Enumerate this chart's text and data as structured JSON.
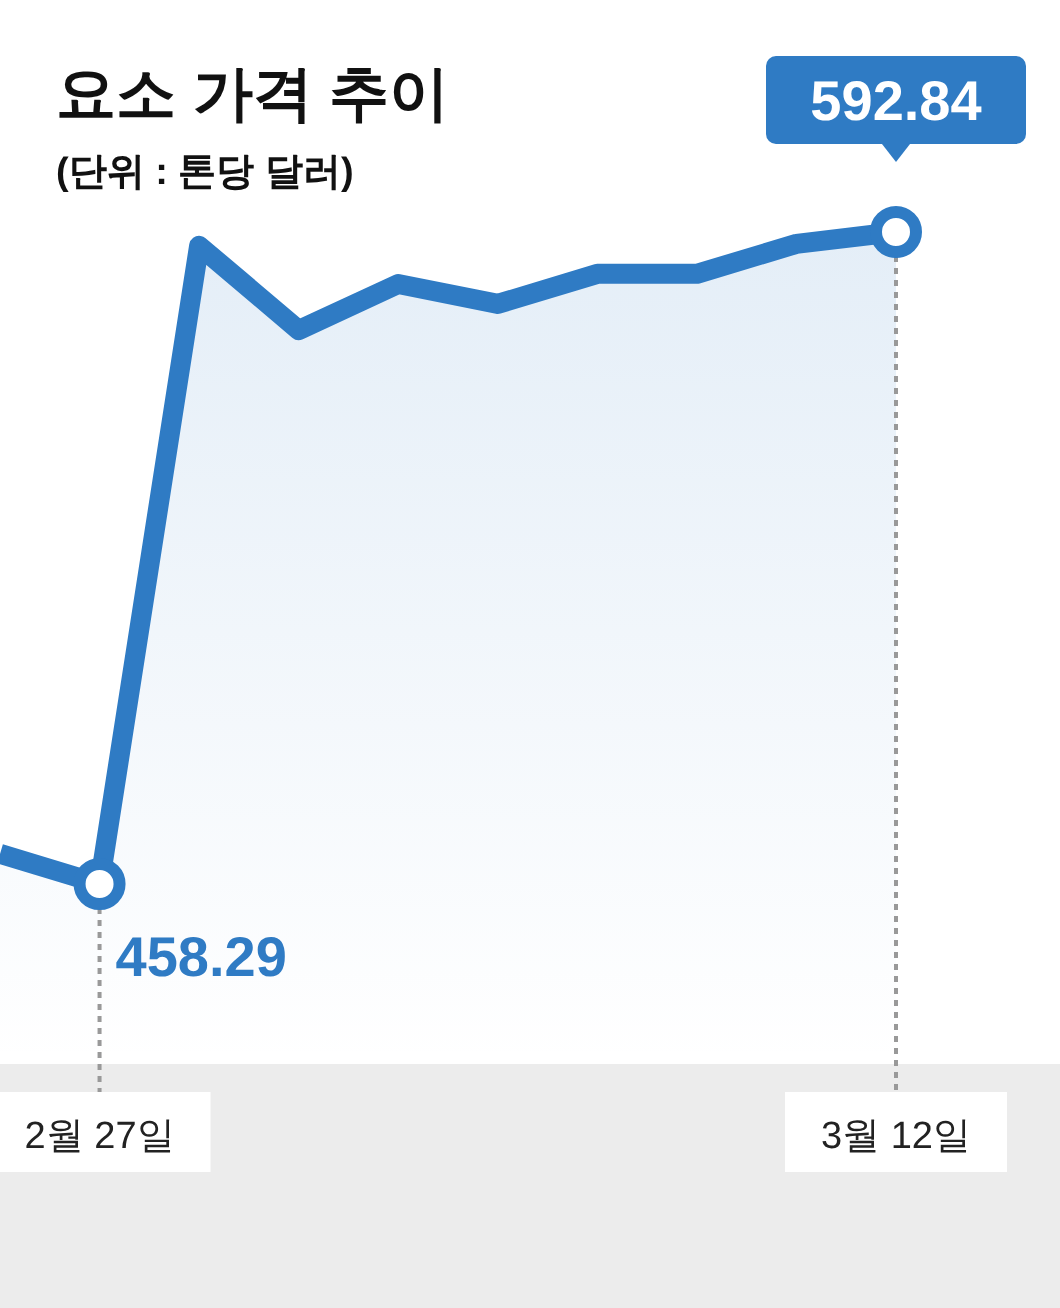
{
  "chart_data": {
    "type": "area",
    "title": "요소 가격 추이",
    "subtitle": "(단위 : 톤당 달러)",
    "categories": [
      null,
      "2월 27일",
      null,
      null,
      null,
      null,
      null,
      null,
      null,
      "3월 12일"
    ],
    "series": [
      {
        "color": "#2f7bc4",
        "values": [
          464.5,
          458.29,
          590.0,
          572.6,
          582.1,
          578.0,
          584.2,
          584.2,
          590.4,
          592.84
        ],
        "value_labels": [
          null,
          "458.29",
          null,
          null,
          null,
          null,
          null,
          null,
          null,
          "592.84"
        ]
      }
    ]
  }
}
